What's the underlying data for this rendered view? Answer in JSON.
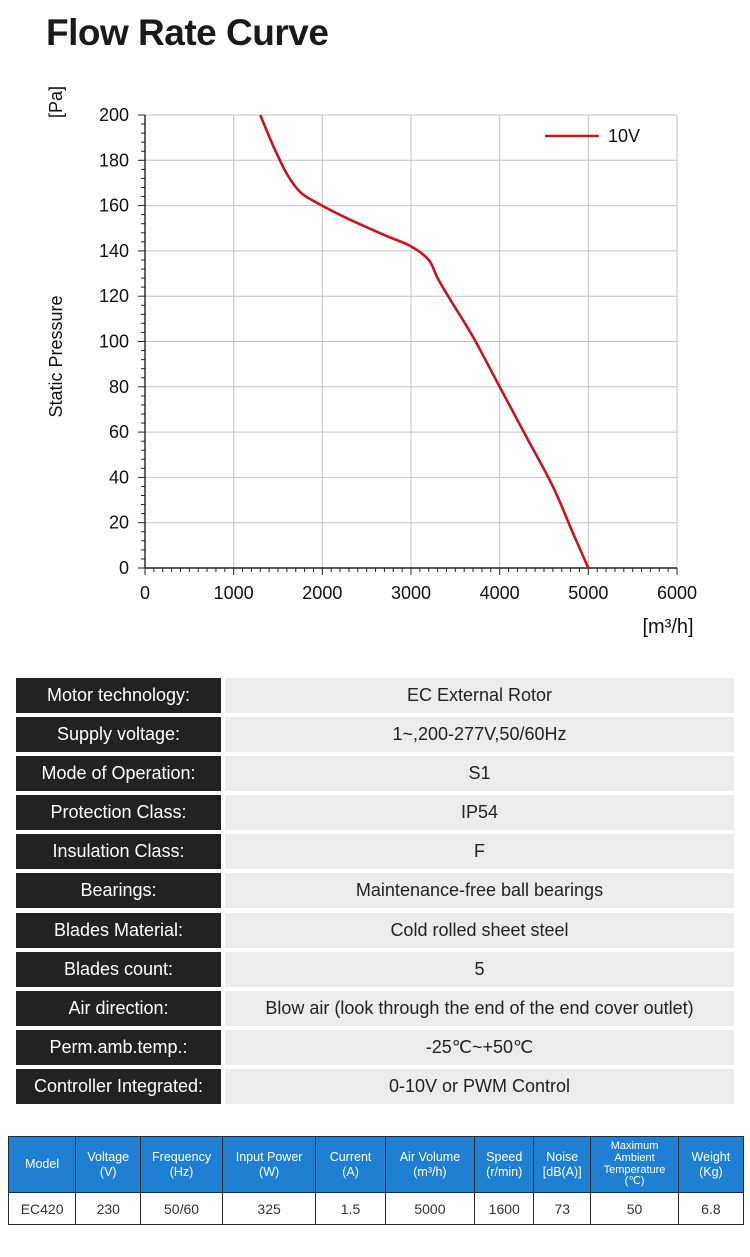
{
  "page": {
    "title": "Flow Rate Curve"
  },
  "chart_data": {
    "type": "line",
    "title": "Flow Rate Curve",
    "xlabel": "[m³/h]",
    "ylabel": "Static Pressure",
    "yunit": "[Pa]",
    "xlim": [
      0,
      6000
    ],
    "ylim": [
      0,
      200
    ],
    "xticks": [
      0,
      1000,
      2000,
      3000,
      4000,
      5000,
      6000
    ],
    "yticks": [
      0,
      20,
      40,
      60,
      80,
      100,
      120,
      140,
      160,
      180,
      200
    ],
    "grid": true,
    "legend_position": "top-right",
    "series": [
      {
        "name": "10V",
        "color": "#c8141e",
        "x": [
          1300,
          1450,
          1600,
          1750,
          1950,
          2300,
          2700,
          3000,
          3200,
          3300,
          3450,
          3700,
          4000,
          4300,
          4600,
          4820,
          5000
        ],
        "y": [
          200,
          186,
          174,
          166,
          161,
          154,
          147,
          142,
          136,
          128,
          118,
          102,
          80,
          58,
          36,
          16,
          0
        ]
      }
    ]
  },
  "specs": [
    {
      "label": "Motor technology:",
      "value": "EC External Rotor"
    },
    {
      "label": "Supply voltage:",
      "value": "1~,200-277V,50/60Hz"
    },
    {
      "label": "Mode of Operation:",
      "value": "S1"
    },
    {
      "label": "Protection Class:",
      "value": "IP54"
    },
    {
      "label": "Insulation Class:",
      "value": "F"
    },
    {
      "label": "Bearings:",
      "value": "Maintenance-free ball bearings"
    },
    {
      "label": "Blades Material:",
      "value": "Cold rolled sheet steel"
    },
    {
      "label": "Blades count:",
      "value": "5"
    },
    {
      "label": "Air direction:",
      "value": "Blow air (look through the end of the end cover outlet)"
    },
    {
      "label": "Perm.amb.temp.:",
      "value": "-25℃~+50℃"
    },
    {
      "label": "Controller Integrated:",
      "value": "0-10V or PWM Control"
    }
  ],
  "model_table": {
    "headers": [
      {
        "line1": "Model",
        "line2": ""
      },
      {
        "line1": "Voltage",
        "line2": "(V)"
      },
      {
        "line1": "Frequency",
        "line2": "(Hz)"
      },
      {
        "line1": "Input Power",
        "line2": "(W)"
      },
      {
        "line1": "Current",
        "line2": "(A)"
      },
      {
        "line1": "Air Volume",
        "line2": "(m³/h)"
      },
      {
        "line1": "Speed",
        "line2": "(r/min)"
      },
      {
        "line1": "Noise",
        "line2": "[dB(A)]"
      },
      {
        "line1": "Maximum Ambient Temperature",
        "line2": "(℃)"
      },
      {
        "line1": "Weight",
        "line2": "(Kg)"
      }
    ],
    "rows": [
      [
        "EC420",
        "230",
        "50/60",
        "325",
        "1.5",
        "5000",
        "1600",
        "73",
        "50",
        "6.8"
      ]
    ]
  }
}
